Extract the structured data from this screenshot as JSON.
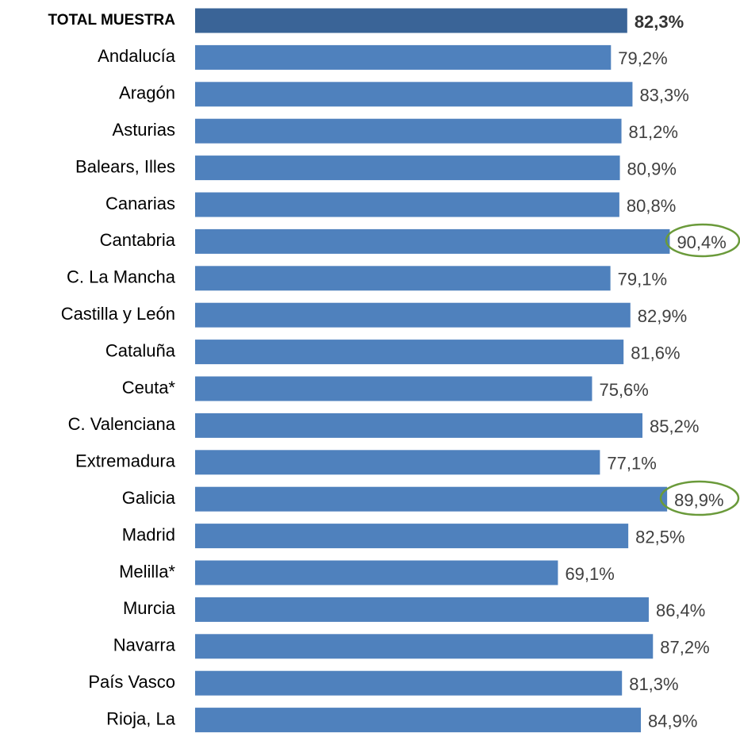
{
  "chart_data": {
    "type": "barh",
    "categories": [
      "TOTAL MUESTRA",
      "Andalucía",
      "Aragón",
      "Asturias",
      "Balears, Illes",
      "Canarias",
      "Cantabria",
      "C. La Mancha",
      "Castilla y León",
      "Cataluña",
      "Ceuta*",
      "C. Valenciana",
      "Extremadura",
      "Galicia",
      "Madrid",
      "Melilla*",
      "Murcia",
      "Navarra",
      "País Vasco",
      "Rioja, La"
    ],
    "values": [
      82.3,
      79.2,
      83.3,
      81.2,
      80.9,
      80.8,
      90.4,
      79.1,
      82.9,
      81.6,
      75.6,
      85.2,
      77.1,
      89.9,
      82.5,
      69.1,
      86.4,
      87.2,
      81.3,
      84.9
    ],
    "value_labels": [
      "82,3%",
      "79,2%",
      "83,3%",
      "81,2%",
      "80,9%",
      "80,8%",
      "90,4%",
      "79,1%",
      "82,9%",
      "81,6%",
      "75,6%",
      "85,2%",
      "77,1%",
      "89,9%",
      "82,5%",
      "69,1%",
      "86,4%",
      "87,2%",
      "81,3%",
      "84,9%"
    ],
    "colors": [
      "#3a6497",
      "#4f81bd",
      "#4f81bd",
      "#4f81bd",
      "#4f81bd",
      "#4f81bd",
      "#4f81bd",
      "#4f81bd",
      "#4f81bd",
      "#4f81bd",
      "#4f81bd",
      "#4f81bd",
      "#4f81bd",
      "#4f81bd",
      "#4f81bd",
      "#4f81bd",
      "#4f81bd",
      "#4f81bd",
      "#4f81bd",
      "#4f81bd"
    ],
    "xlim": [
      0,
      100
    ]
  }
}
